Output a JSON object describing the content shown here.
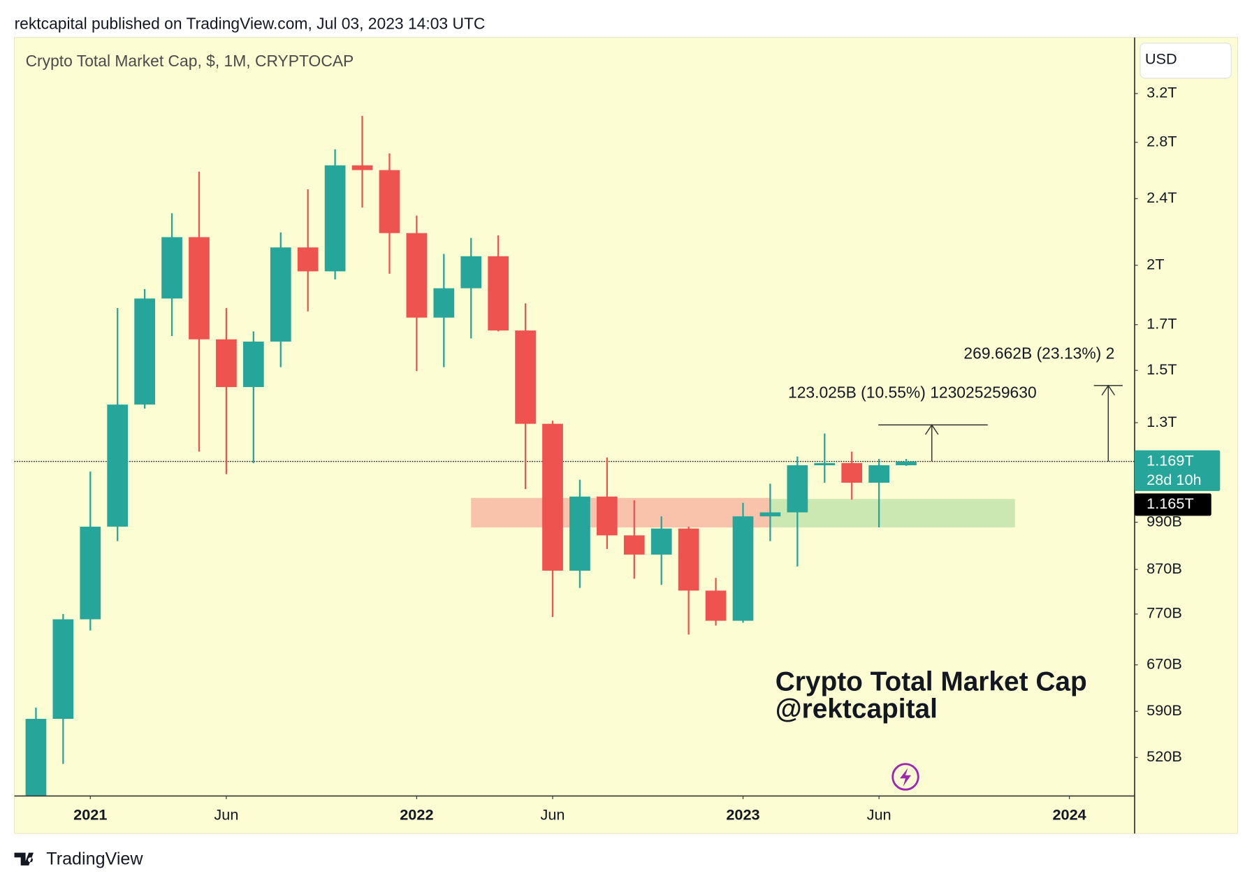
{
  "header": "rektcapital published on TradingView.com, Jul 03, 2023 14:03 UTC",
  "footer": "TradingView",
  "chart_data": {
    "type": "candlestick",
    "title": "Crypto Total Market Cap, $, 1M, CRYPTOCAP",
    "currency": "USD",
    "watermark": [
      "Crypto Total Market Cap",
      "@rektcapital"
    ],
    "log_scale": true,
    "up_color": "#26a69a",
    "down_color": "#ef5350",
    "x": [
      "2020-11",
      "2020-12",
      "2021-01",
      "2021-02",
      "2021-03",
      "2021-04",
      "2021-05",
      "2021-06",
      "2021-07",
      "2021-08",
      "2021-09",
      "2021-10",
      "2021-11",
      "2021-12",
      "2022-01",
      "2022-02",
      "2022-03",
      "2022-04",
      "2022-05",
      "2022-06",
      "2022-07",
      "2022-08",
      "2022-09",
      "2022-10",
      "2022-11",
      "2022-12",
      "2023-01",
      "2023-02",
      "2023-03",
      "2023-04",
      "2023-05",
      "2023-06",
      "2023-07"
    ],
    "open": [
      0.455,
      0.578,
      0.759,
      0.978,
      1.366,
      1.826,
      2.16,
      1.633,
      1.433,
      1.623,
      2.1,
      1.967,
      2.629,
      2.595,
      2.184,
      1.733,
      1.878,
      2.05,
      1.673,
      1.296,
      0.867,
      1.062,
      0.955,
      0.906,
      0.973,
      0.821,
      0.756,
      1.006,
      1.017,
      1.157,
      1.164,
      1.103,
      1.157
    ],
    "high": [
      0.596,
      0.77,
      1.137,
      1.779,
      1.874,
      2.306,
      2.584,
      1.779,
      1.669,
      2.188,
      2.462,
      2.747,
      3.01,
      2.717,
      2.291,
      2.063,
      2.155,
      2.17,
      1.802,
      1.307,
      1.112,
      1.182,
      1.051,
      1.006,
      0.978,
      0.85,
      1.044,
      1.1,
      1.185,
      1.262,
      1.201,
      1.177,
      1.177
    ],
    "low": [
      0.441,
      0.511,
      0.736,
      0.94,
      1.351,
      1.648,
      1.201,
      1.129,
      1.164,
      1.513,
      1.763,
      1.924,
      2.342,
      1.954,
      1.497,
      1.513,
      1.637,
      1.669,
      1.084,
      0.764,
      0.827,
      0.92,
      0.848,
      0.834,
      0.728,
      0.746,
      0.752,
      0.94,
      0.877,
      1.103,
      1.053,
      0.976,
      1.155
    ],
    "close": [
      0.578,
      0.759,
      0.978,
      1.366,
      1.826,
      2.16,
      1.633,
      1.433,
      1.623,
      2.1,
      1.967,
      2.629,
      2.595,
      2.184,
      1.733,
      1.878,
      2.05,
      1.673,
      1.296,
      0.867,
      1.062,
      0.955,
      0.906,
      0.973,
      0.821,
      0.756,
      1.006,
      1.017,
      1.157,
      1.164,
      1.103,
      1.157,
      1.169
    ],
    "ylim": [
      0.468,
      3.73
    ],
    "yticks": [
      {
        "value": 3.2,
        "label": "3.2T"
      },
      {
        "value": 2.8,
        "label": "2.8T"
      },
      {
        "value": 2.4,
        "label": "2.4T"
      },
      {
        "value": 2,
        "label": "2T"
      },
      {
        "value": 1.7,
        "label": "1.7T"
      },
      {
        "value": 1.5,
        "label": "1.5T"
      },
      {
        "value": 1.3,
        "label": "1.3T"
      },
      {
        "value": 0.99,
        "label": "990B"
      },
      {
        "value": 0.87,
        "label": "870B"
      },
      {
        "value": 0.77,
        "label": "770B"
      },
      {
        "value": 0.67,
        "label": "670B"
      },
      {
        "value": 0.59,
        "label": "590B"
      },
      {
        "value": 0.52,
        "label": "520B"
      }
    ],
    "xticks": [
      {
        "value": "2021-01",
        "label": "2021"
      },
      {
        "value": "2021-06",
        "label": "Jun"
      },
      {
        "value": "2022-01",
        "label": "2022"
      },
      {
        "value": "2022-06",
        "label": "Jun"
      },
      {
        "value": "2023-01",
        "label": "2023"
      },
      {
        "value": "2023-06",
        "label": "Jun"
      },
      {
        "value": "2024-01",
        "label": "2024"
      }
    ],
    "zones": [
      {
        "from": "2022-03",
        "to": "2023-02",
        "low": 0.976,
        "high": 1.058,
        "color": "#f8bba5"
      },
      {
        "from": "2023-02",
        "to": "2023-11",
        "low": 0.976,
        "high": 1.055,
        "color": "#c6e5ae"
      }
    ],
    "measures": [
      {
        "from": 1.169,
        "to": 1.292,
        "label": "123.025B (10.55%) 123025259630"
      },
      {
        "from": 1.169,
        "to": 1.439,
        "label": "269.662B (23.13%) 2"
      }
    ],
    "price_labels": [
      {
        "value": 1.169,
        "label": "1.169T",
        "sub": "28d 10h",
        "color": "#26a69a"
      },
      {
        "value": 1.165,
        "label": "1.165T",
        "color": "#000000"
      }
    ]
  }
}
